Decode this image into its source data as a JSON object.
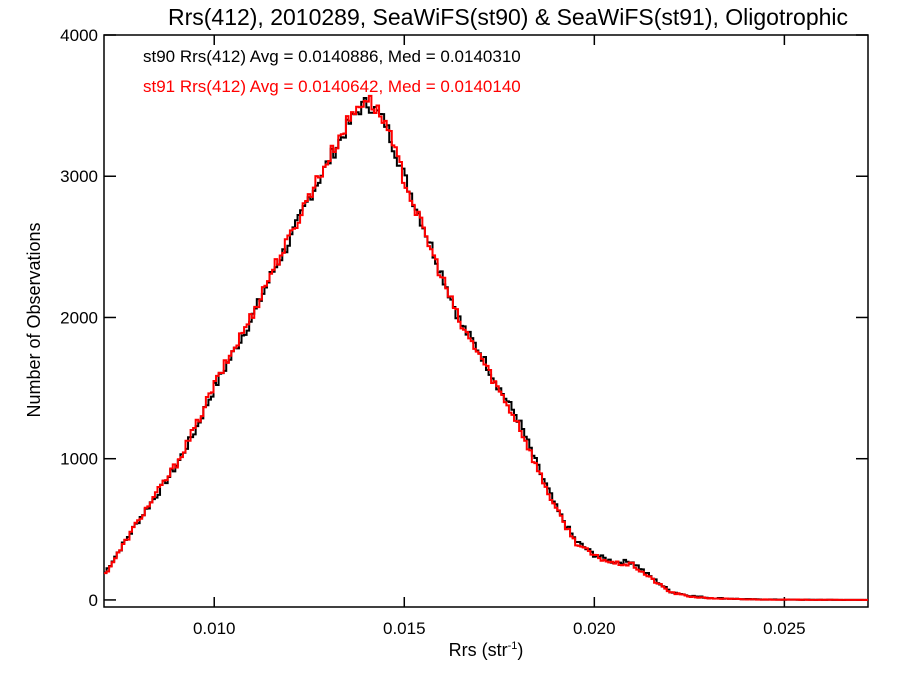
{
  "chart_data": {
    "type": "line",
    "step": true,
    "title": "Rrs(412), 2010289, SeaWiFS(st90) & SeaWiFS(st91), Oligotrophic",
    "xlabel": "Rrs (str",
    "xlabel_sup": "-1",
    "xlabel_close": ")",
    "ylabel": "Number of Observations",
    "xlim": [
      0.0071,
      0.0272
    ],
    "ylim": [
      -50,
      4000
    ],
    "xticks": [
      0.01,
      0.015,
      0.02,
      0.025
    ],
    "xtick_labels": [
      "0.010",
      "0.015",
      "0.020",
      "0.025"
    ],
    "yticks": [
      0,
      1000,
      2000,
      3000,
      4000
    ],
    "ytick_labels": [
      "0",
      "1000",
      "2000",
      "3000",
      "4000"
    ],
    "grid": false,
    "legend": [
      {
        "text": "st90 Rrs(412) Avg = 0.0140886, Med = 0.0140310",
        "color": "#000000"
      },
      {
        "text": "st91 Rrs(412) Avg = 0.0140642, Med = 0.0140140",
        "color": "#ff0000"
      }
    ],
    "series": [
      {
        "color": "#000000",
        "x": [
          0.0071,
          0.0075,
          0.008,
          0.0085,
          0.009,
          0.0095,
          0.01,
          0.0105,
          0.011,
          0.0115,
          0.012,
          0.0125,
          0.013,
          0.0135,
          0.0138,
          0.014,
          0.0142,
          0.0145,
          0.015,
          0.0155,
          0.016,
          0.0165,
          0.017,
          0.0175,
          0.018,
          0.0185,
          0.019,
          0.0195,
          0.02,
          0.0205,
          0.021,
          0.0215,
          0.022,
          0.0225,
          0.023,
          0.024,
          0.025,
          0.026,
          0.0272
        ],
        "y": [
          180,
          350,
          560,
          750,
          950,
          1200,
          1500,
          1750,
          2000,
          2300,
          2550,
          2850,
          3100,
          3350,
          3470,
          3520,
          3480,
          3380,
          3000,
          2650,
          2300,
          1950,
          1750,
          1500,
          1280,
          950,
          650,
          420,
          320,
          270,
          270,
          160,
          60,
          30,
          15,
          5,
          2,
          1,
          0
        ]
      },
      {
        "color": "#ff0000",
        "x": [
          0.0071,
          0.0075,
          0.008,
          0.0085,
          0.009,
          0.0095,
          0.01,
          0.0105,
          0.011,
          0.0115,
          0.012,
          0.0125,
          0.013,
          0.0135,
          0.0138,
          0.014,
          0.0142,
          0.0145,
          0.015,
          0.0155,
          0.016,
          0.0165,
          0.017,
          0.0175,
          0.018,
          0.0185,
          0.019,
          0.0195,
          0.02,
          0.0205,
          0.021,
          0.0215,
          0.022,
          0.0225,
          0.023,
          0.024,
          0.025,
          0.026,
          0.0272
        ],
        "y": [
          170,
          340,
          560,
          760,
          960,
          1220,
          1520,
          1770,
          2020,
          2320,
          2570,
          2870,
          3120,
          3380,
          3500,
          3560,
          3500,
          3380,
          2980,
          2620,
          2280,
          1940,
          1730,
          1480,
          1250,
          930,
          640,
          410,
          310,
          260,
          250,
          150,
          55,
          25,
          12,
          4,
          2,
          1,
          0
        ]
      }
    ]
  }
}
